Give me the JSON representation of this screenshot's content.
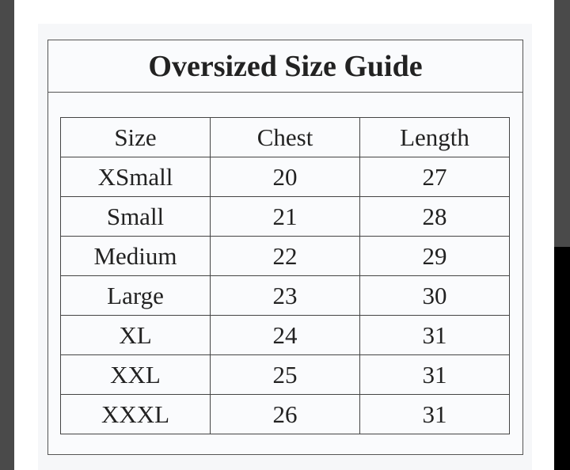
{
  "title": "Oversized Size Guide",
  "table": {
    "headers": [
      "Size",
      "Chest",
      "Length"
    ],
    "rows": [
      [
        "XSmall",
        20,
        27
      ],
      [
        "Small",
        21,
        28
      ],
      [
        "Medium",
        22,
        29
      ],
      [
        "Large",
        23,
        30
      ],
      [
        "XL",
        24,
        31
      ],
      [
        "XXL",
        25,
        31
      ],
      [
        "XXXL",
        26,
        31
      ]
    ]
  }
}
